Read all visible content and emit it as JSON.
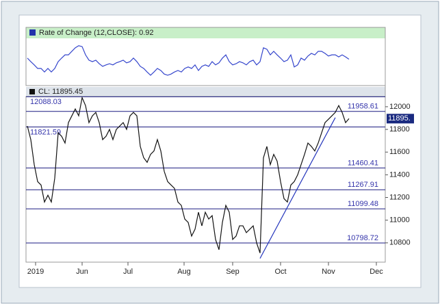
{
  "chart_data": [
    {
      "type": "line",
      "title": "Rate of Change (12,CLOSE): 0.92",
      "color": "#3344cc",
      "ylim": [
        -8,
        8
      ],
      "values": [
        1.3,
        0.1,
        -1.0,
        -2.2,
        -2.2,
        -3.4,
        -2.2,
        -3.4,
        -2.2,
        0.1,
        1.3,
        2.4,
        2.4,
        3.6,
        4.8,
        5.5,
        5.2,
        2.4,
        0.6,
        0.1,
        0.6,
        -0.6,
        -1.5,
        -1.0,
        -0.6,
        -1.0,
        -0.3,
        0.1,
        0.6,
        -0.3,
        0.1,
        1.3,
        0.1,
        -1.5,
        -2.2,
        -3.4,
        -4.5,
        -3.4,
        -2.2,
        -2.9,
        -4.1,
        -4.5,
        -4.1,
        -3.4,
        -2.9,
        -3.4,
        -2.2,
        -1.7,
        -2.2,
        -1.0,
        -2.9,
        -1.5,
        -1.0,
        -1.5,
        0.1,
        -1.0,
        -0.3,
        1.3,
        2.4,
        0.1,
        -1.0,
        -0.6,
        0.1,
        -0.3,
        -1.0,
        0.1,
        0.6,
        -1.0,
        0.1,
        4.8,
        4.3,
        2.4,
        3.6,
        2.4,
        1.3,
        0.1,
        0.6,
        2.4,
        -1.7,
        -1.0,
        1.3,
        0.6,
        2.0,
        2.9,
        2.4,
        3.6,
        3.6,
        2.9,
        2.0,
        2.4,
        2.4,
        1.7,
        2.4,
        1.7,
        0.92
      ]
    },
    {
      "type": "line",
      "title": "CL: 11895.45",
      "color": "#111111",
      "ylim": [
        10630,
        12090
      ],
      "xlim": [
        -0.4,
        104.6
      ],
      "yticks": [
        10800,
        11000,
        11200,
        11400,
        11600,
        11800,
        12000
      ],
      "xticks": [
        {
          "value": 2.4,
          "label": "2019"
        },
        {
          "value": 16,
          "label": "Jun"
        },
        {
          "value": 29.4,
          "label": "Jul"
        },
        {
          "value": 45.8,
          "label": "Aug"
        },
        {
          "value": 60,
          "label": "Sep"
        },
        {
          "value": 74,
          "label": "Oct"
        },
        {
          "value": 88,
          "label": "Nov"
        },
        {
          "value": 102,
          "label": "Dec"
        }
      ],
      "levels": [
        12088.03,
        11958.61,
        11821.59,
        11460.41,
        11267.91,
        11099.48,
        10798.72
      ],
      "level_color": "#1a1a80",
      "last_label": "11895.",
      "trendline": {
        "x": [
          68,
          90
        ],
        "values": [
          10663,
          11904
        ],
        "color": "#2233bb"
      },
      "values": [
        11830,
        11710,
        11490,
        11340,
        11310,
        11160,
        11220,
        11160,
        11370,
        11770,
        11740,
        11680,
        11860,
        11920,
        11980,
        11920,
        12080,
        12010,
        11860,
        11920,
        11950,
        11860,
        11710,
        11740,
        11800,
        11710,
        11800,
        11830,
        11860,
        11800,
        11920,
        11950,
        11920,
        11650,
        11550,
        11510,
        11580,
        11610,
        11710,
        11610,
        11430,
        11340,
        11310,
        11280,
        11160,
        11130,
        11010,
        10980,
        10860,
        10920,
        11070,
        10950,
        11070,
        11010,
        11040,
        10830,
        10740,
        10980,
        11130,
        11070,
        10830,
        10860,
        10950,
        10950,
        10890,
        10920,
        10950,
        10800,
        10710,
        11550,
        11650,
        11490,
        11580,
        11520,
        11340,
        11190,
        11160,
        11310,
        11340,
        11400,
        11490,
        11580,
        11680,
        11650,
        11610,
        11680,
        11770,
        11860,
        11890,
        11920,
        11950,
        12010,
        11950,
        11860,
        11895
      ]
    }
  ]
}
